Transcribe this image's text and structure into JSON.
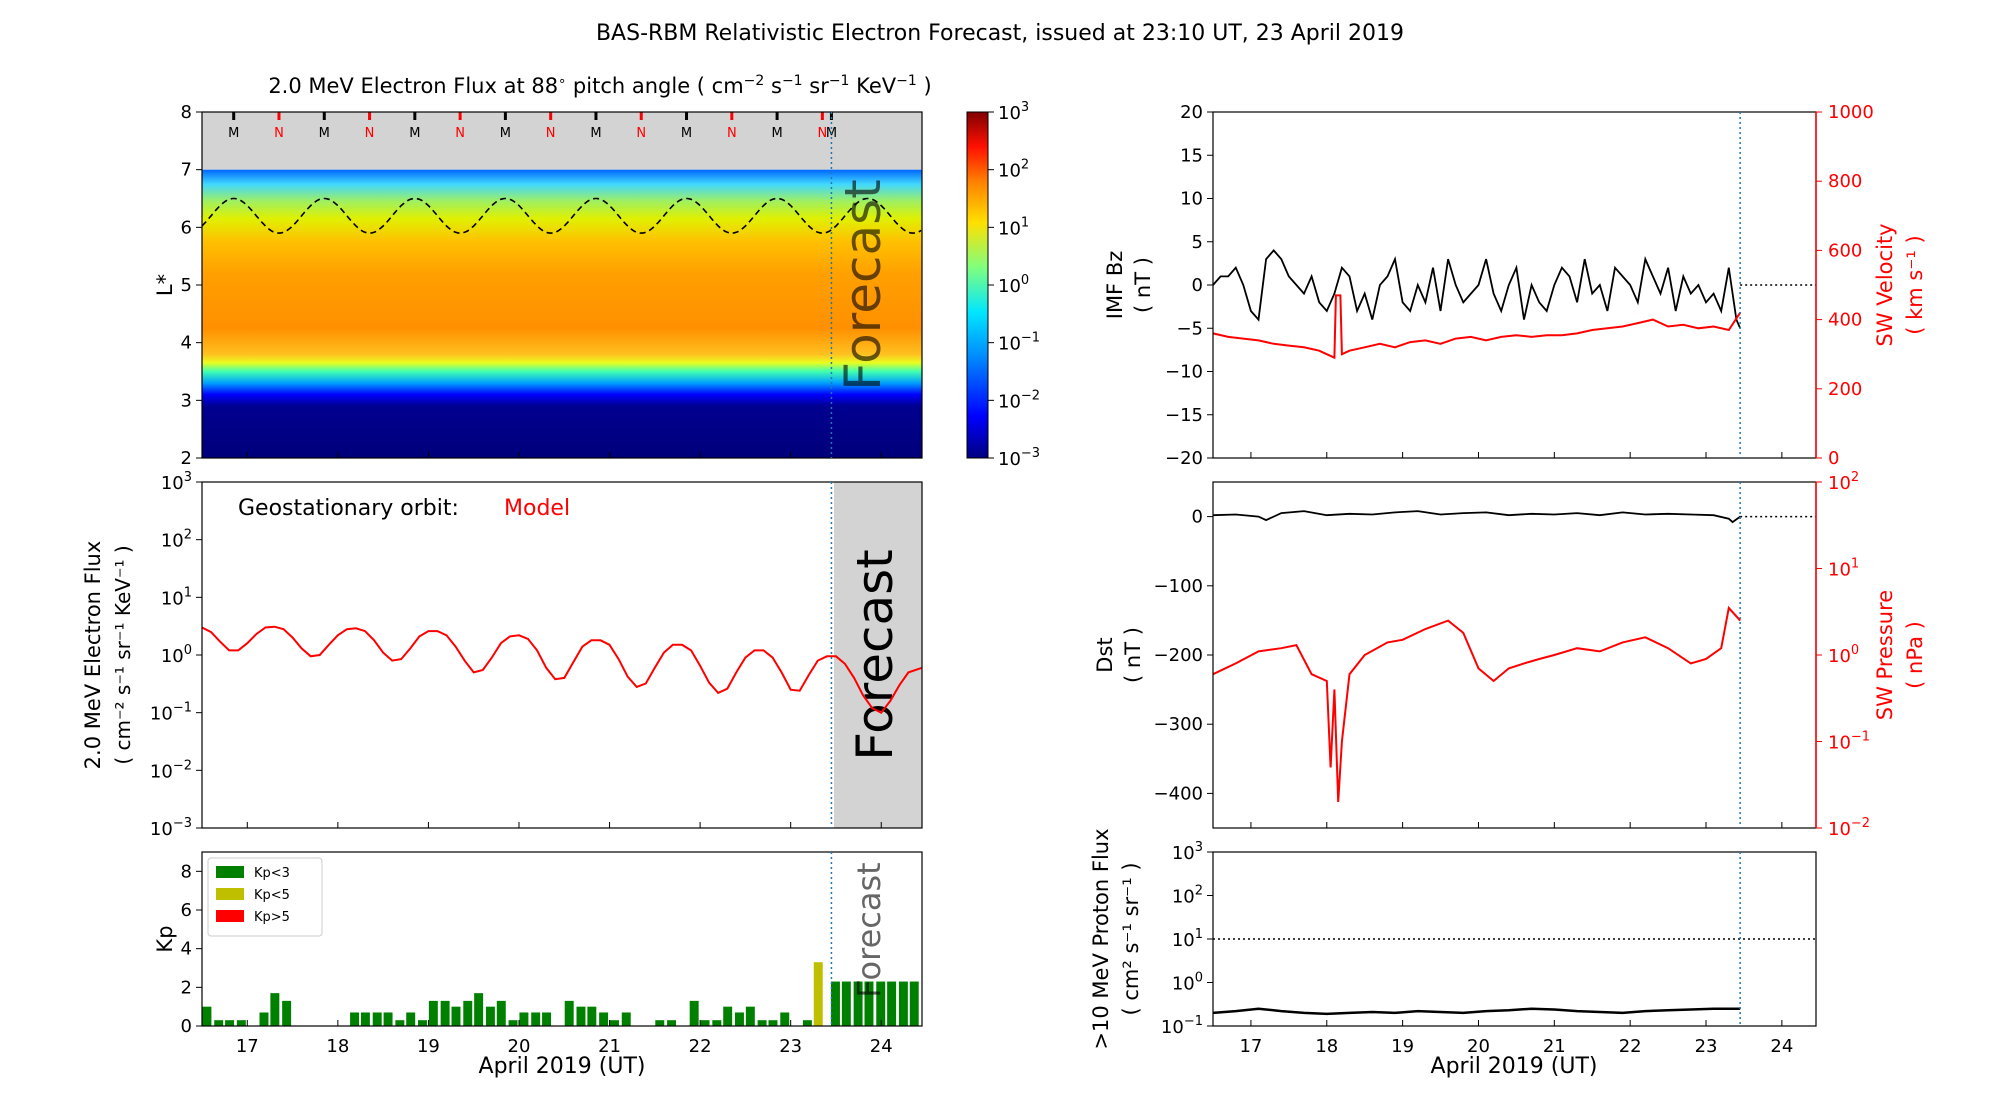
{
  "figure": {
    "title": "BAS-RBM Relativistic Electron Forecast, issued at 23:10 UT, 23 April 2019",
    "forecast_label": "Forecast"
  },
  "chart_data": [
    {
      "id": "lstar",
      "type": "heatmap",
      "title": "2.0 MeV Electron Flux at 88° pitch angle ( cm⁻² s⁻¹ sr⁻¹ KeV⁻¹ )",
      "title_parts": [
        "2.0 MeV Electron Flux at 88",
        "∘",
        " pitch angle ( cm",
        "−2",
        " s",
        "−1",
        " sr",
        "−1",
        " KeV",
        "−1",
        " )"
      ],
      "ylabel": "L*",
      "xlim": [
        16.5,
        24.45
      ],
      "ylim": [
        2,
        8
      ],
      "yticks": [
        2,
        3,
        4,
        5,
        6,
        7,
        8
      ],
      "forecast_start": 23.45,
      "colorbar": {
        "labels": [
          "10",
          "10",
          "10",
          "10",
          "10",
          "10",
          "10"
        ],
        "exponents": [
          "3",
          "2",
          "1",
          "0",
          "−1",
          "−2",
          "−3"
        ]
      },
      "mlt_markers": [
        {
          "x": 16.85,
          "label": "M"
        },
        {
          "x": 17.35,
          "label": "N"
        },
        {
          "x": 17.85,
          "label": "M"
        },
        {
          "x": 18.35,
          "label": "N"
        },
        {
          "x": 18.85,
          "label": "M"
        },
        {
          "x": 19.35,
          "label": "N"
        },
        {
          "x": 19.85,
          "label": "M"
        },
        {
          "x": 20.35,
          "label": "N"
        },
        {
          "x": 20.85,
          "label": "M"
        },
        {
          "x": 21.35,
          "label": "N"
        },
        {
          "x": 21.85,
          "label": "M"
        },
        {
          "x": 22.35,
          "label": "N"
        },
        {
          "x": 22.85,
          "label": "M"
        },
        {
          "x": 23.35,
          "label": "N"
        },
        {
          "x": 23.45,
          "label": "M"
        }
      ],
      "geo_lstar": {
        "mean": 6.2,
        "amplitude": 0.3
      }
    },
    {
      "id": "geoflux",
      "type": "line",
      "ylabel": [
        "2.0 MeV Electron Flux",
        "( cm⁻² s⁻¹ sr⁻¹ KeV⁻¹ )"
      ],
      "xlim": [
        16.5,
        24.45
      ],
      "ylim_log10": [
        -3,
        3
      ],
      "ytick_exponents": [
        "−3",
        "−2",
        "−1",
        "0",
        "1",
        "2",
        "3"
      ],
      "legend_text": "Geostationary orbit:",
      "legend_model": "Model",
      "forecast_start": 23.45,
      "series": [
        {
          "name": "Model",
          "color": "#ff0000",
          "x": [
            16.5,
            16.6,
            16.7,
            16.8,
            16.9,
            17.0,
            17.1,
            17.2,
            17.3,
            17.4,
            17.5,
            17.6,
            17.7,
            17.8,
            17.9,
            18.0,
            18.1,
            18.2,
            18.3,
            18.4,
            18.5,
            18.6,
            18.7,
            18.8,
            18.9,
            19.0,
            19.1,
            19.2,
            19.3,
            19.4,
            19.5,
            19.6,
            19.7,
            19.8,
            19.9,
            20.0,
            20.1,
            20.2,
            20.3,
            20.4,
            20.5,
            20.6,
            20.7,
            20.8,
            20.9,
            21.0,
            21.1,
            21.2,
            21.3,
            21.4,
            21.5,
            21.6,
            21.7,
            21.8,
            21.9,
            22.0,
            22.1,
            22.2,
            22.3,
            22.4,
            22.5,
            22.6,
            22.7,
            22.8,
            22.9,
            23.0,
            23.1,
            23.2,
            23.3,
            23.4,
            23.5,
            23.6,
            23.7,
            23.8,
            23.9,
            24.0,
            24.1,
            24.2,
            24.3,
            24.45
          ],
          "y": [
            3.0,
            2.5,
            1.7,
            1.2,
            1.2,
            1.6,
            2.3,
            3.0,
            3.1,
            2.8,
            2.0,
            1.3,
            0.95,
            1.0,
            1.5,
            2.2,
            2.8,
            2.9,
            2.6,
            1.8,
            1.1,
            0.8,
            0.85,
            1.3,
            2.1,
            2.6,
            2.6,
            2.2,
            1.4,
            0.8,
            0.5,
            0.55,
            0.9,
            1.6,
            2.1,
            2.2,
            1.9,
            1.2,
            0.6,
            0.38,
            0.4,
            0.75,
            1.4,
            1.8,
            1.8,
            1.5,
            0.85,
            0.42,
            0.28,
            0.32,
            0.6,
            1.1,
            1.5,
            1.5,
            1.2,
            0.65,
            0.33,
            0.22,
            0.26,
            0.5,
            0.9,
            1.2,
            1.2,
            0.9,
            0.5,
            0.25,
            0.24,
            0.45,
            0.8,
            0.95,
            0.95,
            0.7,
            0.4,
            0.2,
            0.12,
            0.1,
            0.16,
            0.3,
            0.5,
            0.6
          ]
        }
      ]
    },
    {
      "id": "kp",
      "type": "bar",
      "ylabel": "Kp",
      "xlim": [
        16.5,
        24.45
      ],
      "ylim": [
        0,
        9
      ],
      "yticks": [
        0,
        2,
        4,
        6,
        8
      ],
      "xticks": [
        17,
        18,
        19,
        20,
        21,
        22,
        23,
        24
      ],
      "xlabel": "April 2019 (UT)",
      "forecast_start": 23.45,
      "bar_width": 0.11,
      "legend": [
        {
          "label": "Kp<3",
          "color": "#008000"
        },
        {
          "label": "Kp<5",
          "color": "#bfbf00"
        },
        {
          "label": "Kp>5",
          "color": "#ff0000"
        }
      ],
      "bars_x": [
        16.56,
        16.69,
        16.81,
        16.94,
        17.06,
        17.19,
        17.31,
        17.44,
        17.56,
        17.69,
        17.81,
        17.94,
        18.06,
        18.19,
        18.31,
        18.44,
        18.56,
        18.69,
        18.81,
        18.94,
        19.06,
        19.19,
        19.31,
        19.44,
        19.56,
        19.69,
        19.81,
        19.94,
        20.06,
        20.19,
        20.31,
        20.44,
        20.56,
        20.69,
        20.81,
        20.94,
        21.06,
        21.19,
        21.31,
        21.44,
        21.56,
        21.69,
        21.81,
        21.94,
        22.06,
        22.19,
        22.31,
        22.44,
        22.56,
        22.69,
        22.81,
        22.94,
        23.06,
        23.19,
        23.31,
        23.5,
        23.62,
        23.75,
        23.87,
        24.0,
        24.12,
        24.25,
        24.37
      ],
      "bars_kp": [
        1.0,
        0.3,
        0.3,
        0.3,
        0,
        0.7,
        1.7,
        1.3,
        0,
        0,
        0,
        0,
        0,
        0.7,
        0.7,
        0.7,
        0.7,
        0.3,
        0.7,
        0.3,
        1.3,
        1.3,
        1.0,
        1.3,
        1.7,
        1.0,
        1.3,
        0.3,
        0.7,
        0.7,
        0.7,
        0,
        1.3,
        1.0,
        1.0,
        0.7,
        0.3,
        0.7,
        0,
        0,
        0.3,
        0.3,
        0,
        1.3,
        0.3,
        0.3,
        1.0,
        0.7,
        1.0,
        0.3,
        0.3,
        0.7,
        0,
        0.3,
        3.3,
        2.3,
        2.3,
        2.3,
        2.3,
        2.3,
        2.3,
        2.3,
        2.3
      ]
    },
    {
      "id": "imf",
      "type": "line",
      "ylabel": [
        "IMF Bz",
        "( nT )"
      ],
      "ylabel_right": [
        "SW Velocity",
        "( km s⁻¹ )"
      ],
      "xlim": [
        16.5,
        24.45
      ],
      "ylim": [
        -20,
        20
      ],
      "yticks": [
        -20,
        -15,
        -10,
        -5,
        0,
        5,
        10,
        15,
        20
      ],
      "ylim_right": [
        0,
        1000
      ],
      "yticks_right": [
        0,
        200,
        400,
        600,
        800,
        1000
      ],
      "forecast_start": 23.45,
      "series": [
        {
          "name": "IMF Bz",
          "color": "#000000",
          "x": [
            16.5,
            16.6,
            16.7,
            16.8,
            16.9,
            17.0,
            17.1,
            17.2,
            17.3,
            17.4,
            17.5,
            17.6,
            17.7,
            17.8,
            17.9,
            18.0,
            18.1,
            18.2,
            18.3,
            18.4,
            18.5,
            18.6,
            18.7,
            18.8,
            18.9,
            19.0,
            19.1,
            19.2,
            19.3,
            19.4,
            19.5,
            19.6,
            19.7,
            19.8,
            19.9,
            20.0,
            20.1,
            20.2,
            20.3,
            20.4,
            20.5,
            20.6,
            20.7,
            20.8,
            20.9,
            21.0,
            21.1,
            21.2,
            21.3,
            21.4,
            21.5,
            21.6,
            21.7,
            21.8,
            21.9,
            22.0,
            22.1,
            22.2,
            22.3,
            22.4,
            22.5,
            22.6,
            22.7,
            22.8,
            22.9,
            23.0,
            23.1,
            23.2,
            23.3,
            23.4,
            23.45
          ],
          "y": [
            0,
            1,
            1,
            2,
            0,
            -3,
            -4,
            3,
            4,
            3,
            1,
            0,
            -1,
            1,
            -2,
            -3,
            -1,
            2,
            1,
            -3,
            -1,
            -4,
            0,
            1,
            3,
            -2,
            -3,
            0,
            -2,
            2,
            -3,
            3,
            0,
            -2,
            -1,
            0,
            3,
            -1,
            -3,
            0,
            2,
            -4,
            0,
            -2,
            -3,
            0,
            2,
            1,
            -2,
            3,
            -1,
            0,
            -3,
            2,
            1,
            0,
            -2,
            3,
            1,
            -1,
            2,
            -3,
            1,
            -1,
            0,
            -2,
            -1,
            -3,
            2,
            -4,
            -5
          ]
        },
        {
          "name": "SW Velocity",
          "color": "#ff0000",
          "axis": "right",
          "x": [
            16.5,
            16.7,
            16.9,
            17.1,
            17.3,
            17.5,
            17.7,
            17.9,
            18.0,
            18.1,
            18.12,
            18.18,
            18.2,
            18.3,
            18.5,
            18.7,
            18.9,
            19.1,
            19.3,
            19.5,
            19.7,
            19.9,
            20.1,
            20.3,
            20.5,
            20.7,
            20.9,
            21.1,
            21.3,
            21.5,
            21.7,
            21.9,
            22.1,
            22.3,
            22.5,
            22.7,
            22.9,
            23.1,
            23.3,
            23.45
          ],
          "y": [
            360,
            350,
            345,
            340,
            330,
            325,
            320,
            310,
            300,
            290,
            470,
            470,
            300,
            310,
            320,
            330,
            320,
            335,
            340,
            330,
            345,
            350,
            340,
            350,
            355,
            350,
            355,
            355,
            360,
            370,
            375,
            380,
            390,
            400,
            380,
            385,
            375,
            380,
            370,
            420
          ]
        }
      ]
    },
    {
      "id": "dst",
      "type": "line",
      "ylabel": [
        "Dst",
        "( nT )"
      ],
      "ylabel_right": [
        "SW Pressure",
        "( nPa )"
      ],
      "xlim": [
        16.5,
        24.45
      ],
      "ylim": [
        -450,
        50
      ],
      "yticks": [
        -400,
        -300,
        -200,
        -100,
        0
      ],
      "ylim_right_log10": [
        -2,
        2
      ],
      "ytick_right_exponents": [
        "−2",
        "−1",
        "0",
        "1",
        "2"
      ],
      "forecast_start": 23.45,
      "series": [
        {
          "name": "Dst",
          "color": "#000000",
          "x": [
            16.5,
            16.8,
            17.1,
            17.2,
            17.4,
            17.7,
            18.0,
            18.3,
            18.6,
            18.9,
            19.2,
            19.5,
            19.8,
            20.1,
            20.4,
            20.7,
            21.0,
            21.3,
            21.6,
            21.9,
            22.2,
            22.5,
            22.8,
            23.1,
            23.3,
            23.35,
            23.45
          ],
          "y": [
            2,
            3,
            0,
            -5,
            5,
            8,
            2,
            4,
            3,
            6,
            8,
            3,
            5,
            6,
            2,
            4,
            3,
            5,
            2,
            6,
            3,
            4,
            3,
            2,
            -3,
            -8,
            0
          ]
        },
        {
          "name": "SW Pressure",
          "color": "#ff0000",
          "axis": "right",
          "x": [
            16.5,
            16.8,
            17.1,
            17.4,
            17.6,
            17.8,
            18.0,
            18.05,
            18.1,
            18.15,
            18.2,
            18.3,
            18.5,
            18.8,
            19.0,
            19.3,
            19.6,
            19.8,
            20.0,
            20.2,
            20.4,
            20.6,
            20.8,
            21.0,
            21.3,
            21.6,
            21.9,
            22.2,
            22.5,
            22.8,
            23.0,
            23.2,
            23.3,
            23.45
          ],
          "y": [
            0.6,
            0.8,
            1.1,
            1.2,
            1.3,
            0.6,
            0.5,
            0.05,
            0.4,
            0.02,
            0.1,
            0.6,
            1.0,
            1.4,
            1.5,
            2.0,
            2.5,
            1.8,
            0.7,
            0.5,
            0.7,
            0.8,
            0.9,
            1.0,
            1.2,
            1.1,
            1.4,
            1.6,
            1.2,
            0.8,
            0.9,
            1.2,
            3.5,
            2.5
          ]
        }
      ]
    },
    {
      "id": "proton",
      "type": "line",
      "ylabel": [
        ">10 MeV Proton Flux",
        "( cm² s⁻¹ sr⁻¹ )"
      ],
      "xlabel": "April 2019 (UT)",
      "xlim": [
        16.5,
        24.45
      ],
      "ylim_log10": [
        -1,
        3
      ],
      "ytick_exponents": [
        "−1",
        "0",
        "1",
        "2",
        "3"
      ],
      "xticks": [
        17,
        18,
        19,
        20,
        21,
        22,
        23,
        24
      ],
      "threshold": 10,
      "forecast_start": 23.45,
      "series": [
        {
          "name": ">10 MeV Proton Flux",
          "color": "#000000",
          "x": [
            16.5,
            16.8,
            17.1,
            17.4,
            17.7,
            18.0,
            18.3,
            18.6,
            18.9,
            19.2,
            19.5,
            19.8,
            20.1,
            20.4,
            20.7,
            21.0,
            21.3,
            21.6,
            21.9,
            22.2,
            22.5,
            22.8,
            23.1,
            23.45
          ],
          "y": [
            0.2,
            0.22,
            0.25,
            0.22,
            0.2,
            0.19,
            0.2,
            0.21,
            0.2,
            0.22,
            0.21,
            0.2,
            0.22,
            0.23,
            0.25,
            0.24,
            0.22,
            0.21,
            0.2,
            0.22,
            0.23,
            0.24,
            0.25,
            0.25
          ]
        }
      ]
    }
  ]
}
